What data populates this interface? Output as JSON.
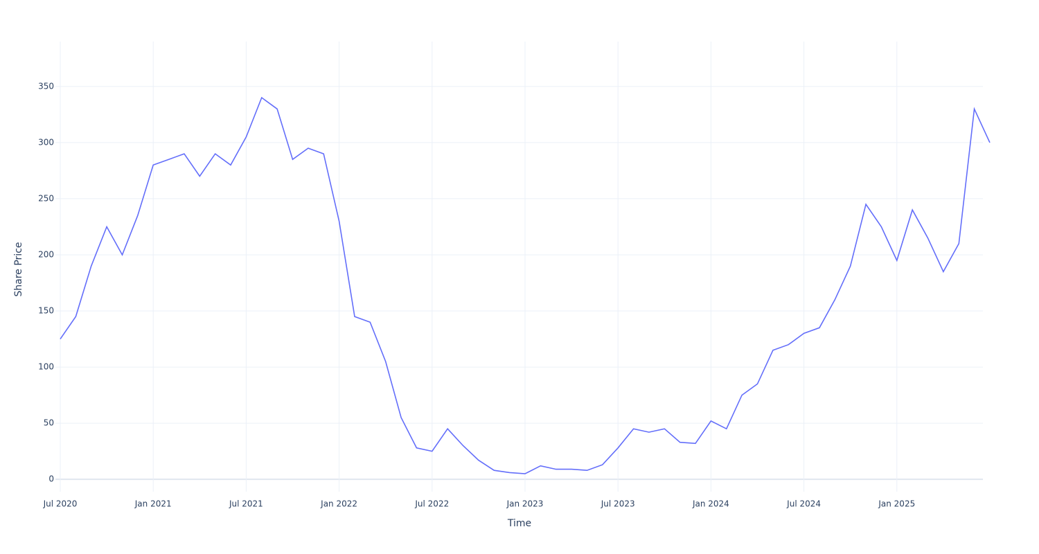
{
  "chart_data": {
    "type": "line",
    "xlabel": "Time",
    "ylabel": "Share Price",
    "x": [
      "2020-07",
      "2020-08",
      "2020-09",
      "2020-10",
      "2020-11",
      "2020-12",
      "2021-01",
      "2021-02",
      "2021-03",
      "2021-04",
      "2021-05",
      "2021-06",
      "2021-07",
      "2021-08",
      "2021-09",
      "2021-10",
      "2021-11",
      "2021-12",
      "2022-01",
      "2022-02",
      "2022-03",
      "2022-04",
      "2022-05",
      "2022-06",
      "2022-07",
      "2022-08",
      "2022-09",
      "2022-10",
      "2022-11",
      "2022-12",
      "2023-01",
      "2023-02",
      "2023-03",
      "2023-04",
      "2023-05",
      "2023-06",
      "2023-07",
      "2023-08",
      "2023-09",
      "2023-10",
      "2023-11",
      "2023-12",
      "2024-01",
      "2024-02",
      "2024-03",
      "2024-04",
      "2024-05",
      "2024-06",
      "2024-07",
      "2024-08",
      "2024-09",
      "2024-10",
      "2024-11",
      "2024-12",
      "2025-01",
      "2025-02",
      "2025-03",
      "2025-04",
      "2025-05",
      "2025-06",
      "2025-07"
    ],
    "series": [
      {
        "name": "Share Price",
        "color": "#636efa",
        "values": [
          125,
          145,
          190,
          225,
          200,
          235,
          280,
          285,
          290,
          270,
          290,
          280,
          305,
          340,
          330,
          285,
          295,
          290,
          230,
          145,
          140,
          105,
          55,
          28,
          25,
          45,
          30,
          17,
          8,
          6,
          5,
          12,
          9,
          9,
          8,
          13,
          28,
          45,
          42,
          45,
          33,
          32,
          52,
          45,
          75,
          85,
          115,
          120,
          130,
          135,
          160,
          190,
          245,
          225,
          195,
          240,
          215,
          185,
          210,
          330,
          300
        ]
      }
    ],
    "xlim": [
      "2020-07",
      "2025-07"
    ],
    "xticks": [
      {
        "value": "2020-07",
        "label": "Jul 2020"
      },
      {
        "value": "2021-01",
        "label": "Jan 2021"
      },
      {
        "value": "2021-07",
        "label": "Jul 2021"
      },
      {
        "value": "2022-01",
        "label": "Jan 2022"
      },
      {
        "value": "2022-07",
        "label": "Jul 2022"
      },
      {
        "value": "2023-01",
        "label": "Jan 2023"
      },
      {
        "value": "2023-07",
        "label": "Jul 2023"
      },
      {
        "value": "2024-01",
        "label": "Jan 2024"
      },
      {
        "value": "2024-07",
        "label": "Jul 2024"
      },
      {
        "value": "2025-01",
        "label": "Jan 2025"
      }
    ],
    "ylim": [
      -11,
      390
    ],
    "yticks": [
      0,
      50,
      100,
      150,
      200,
      250,
      300,
      350
    ],
    "grid": true
  }
}
